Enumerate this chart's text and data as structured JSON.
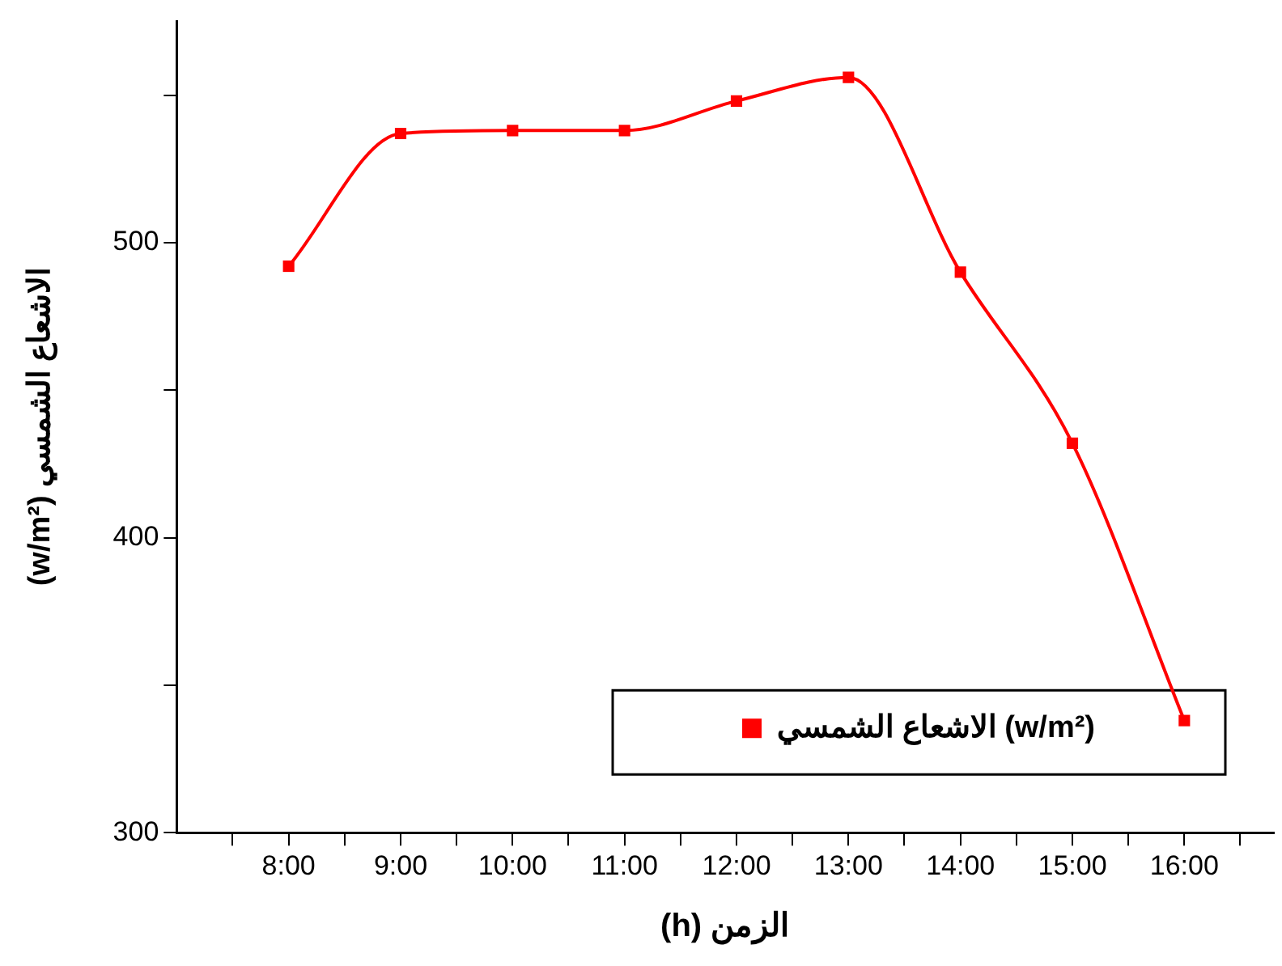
{
  "chart_data": {
    "type": "line",
    "xlabel": "(h) الزمن",
    "ylabel": "(w/m²) الاشعاع الشمسي",
    "x": [
      8,
      9,
      10,
      11,
      12,
      13,
      14,
      15,
      16
    ],
    "series": [
      {
        "name": "الاشعاع الشمسي (w/m²)",
        "color": "#ff0000",
        "values": [
          492,
          537,
          538,
          538,
          548,
          556,
          490,
          432,
          338
        ]
      }
    ],
    "xlim": [
      7,
      16.8
    ],
    "xticks": [
      {
        "value": 7.5,
        "label": null
      },
      {
        "value": 8,
        "label": "8:00"
      },
      {
        "value": 8.5,
        "label": null
      },
      {
        "value": 9,
        "label": "9:00"
      },
      {
        "value": 9.5,
        "label": null
      },
      {
        "value": 10,
        "label": "10:00"
      },
      {
        "value": 10.5,
        "label": null
      },
      {
        "value": 11,
        "label": "11:00"
      },
      {
        "value": 11.5,
        "label": null
      },
      {
        "value": 12,
        "label": "12:00"
      },
      {
        "value": 12.5,
        "label": null
      },
      {
        "value": 13,
        "label": "13:00"
      },
      {
        "value": 13.5,
        "label": null
      },
      {
        "value": 14,
        "label": "14:00"
      },
      {
        "value": 14.5,
        "label": null
      },
      {
        "value": 15,
        "label": "15:00"
      },
      {
        "value": 15.5,
        "label": null
      },
      {
        "value": 16,
        "label": "16:00"
      },
      {
        "value": 16.5,
        "label": null
      }
    ],
    "ylim": [
      300,
      575
    ],
    "yticks": [
      300,
      {
        "value": 350,
        "label": null
      },
      400,
      {
        "value": 450,
        "label": null
      },
      500,
      {
        "value": 550,
        "label": null
      }
    ],
    "grid": false,
    "legend": "bottom right",
    "marker": "square",
    "line_style": "solid"
  }
}
